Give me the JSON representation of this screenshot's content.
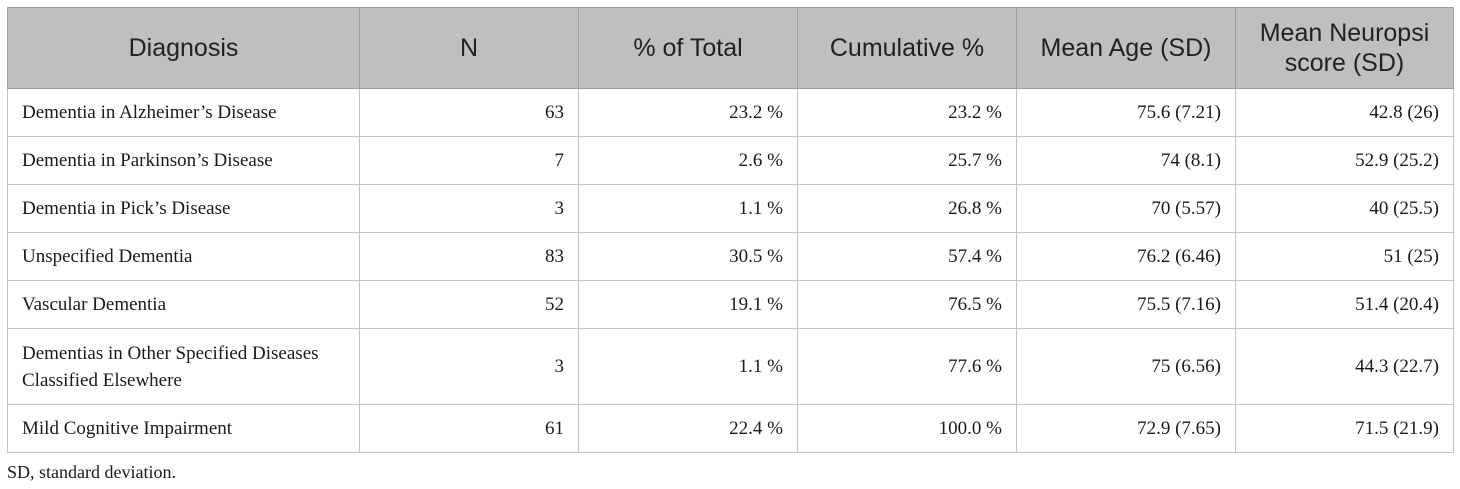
{
  "table": {
    "headers": [
      "Diagnosis",
      "N",
      "% of Total",
      "Cumulative %",
      "Mean Age (SD)",
      "Mean Neuropsi score (SD)"
    ],
    "rows": [
      [
        "Dementia in Alzheimer’s Disease",
        "63",
        "23.2 %",
        "23.2 %",
        "75.6 (7.21)",
        "42.8 (26)"
      ],
      [
        "Dementia in Parkinson’s Disease",
        "7",
        "2.6 %",
        "25.7 %",
        "74 (8.1)",
        "52.9 (25.2)"
      ],
      [
        "Dementia in Pick’s Disease",
        "3",
        "1.1 %",
        "26.8 %",
        "70 (5.57)",
        "40 (25.5)"
      ],
      [
        "Unspecified Dementia",
        "83",
        "30.5 %",
        "57.4 %",
        "76.2 (6.46)",
        "51 (25)"
      ],
      [
        "Vascular Dementia",
        "52",
        "19.1 %",
        "76.5 %",
        "75.5 (7.16)",
        "51.4 (20.4)"
      ],
      [
        "Dementias in Other Specified Diseases Classified Elsewhere",
        "3",
        "1.1 %",
        "77.6 %",
        "75 (6.56)",
        "44.3 (22.7)"
      ],
      [
        "Mild Cognitive Impairment",
        "61",
        "22.4 %",
        "100.0 %",
        "72.9 (7.65)",
        "71.5 (21.9)"
      ]
    ]
  },
  "footnote": "SD, standard deviation.",
  "colors": {
    "header_background": "#bfbfbf",
    "grid_line": "#c4c4c4"
  }
}
